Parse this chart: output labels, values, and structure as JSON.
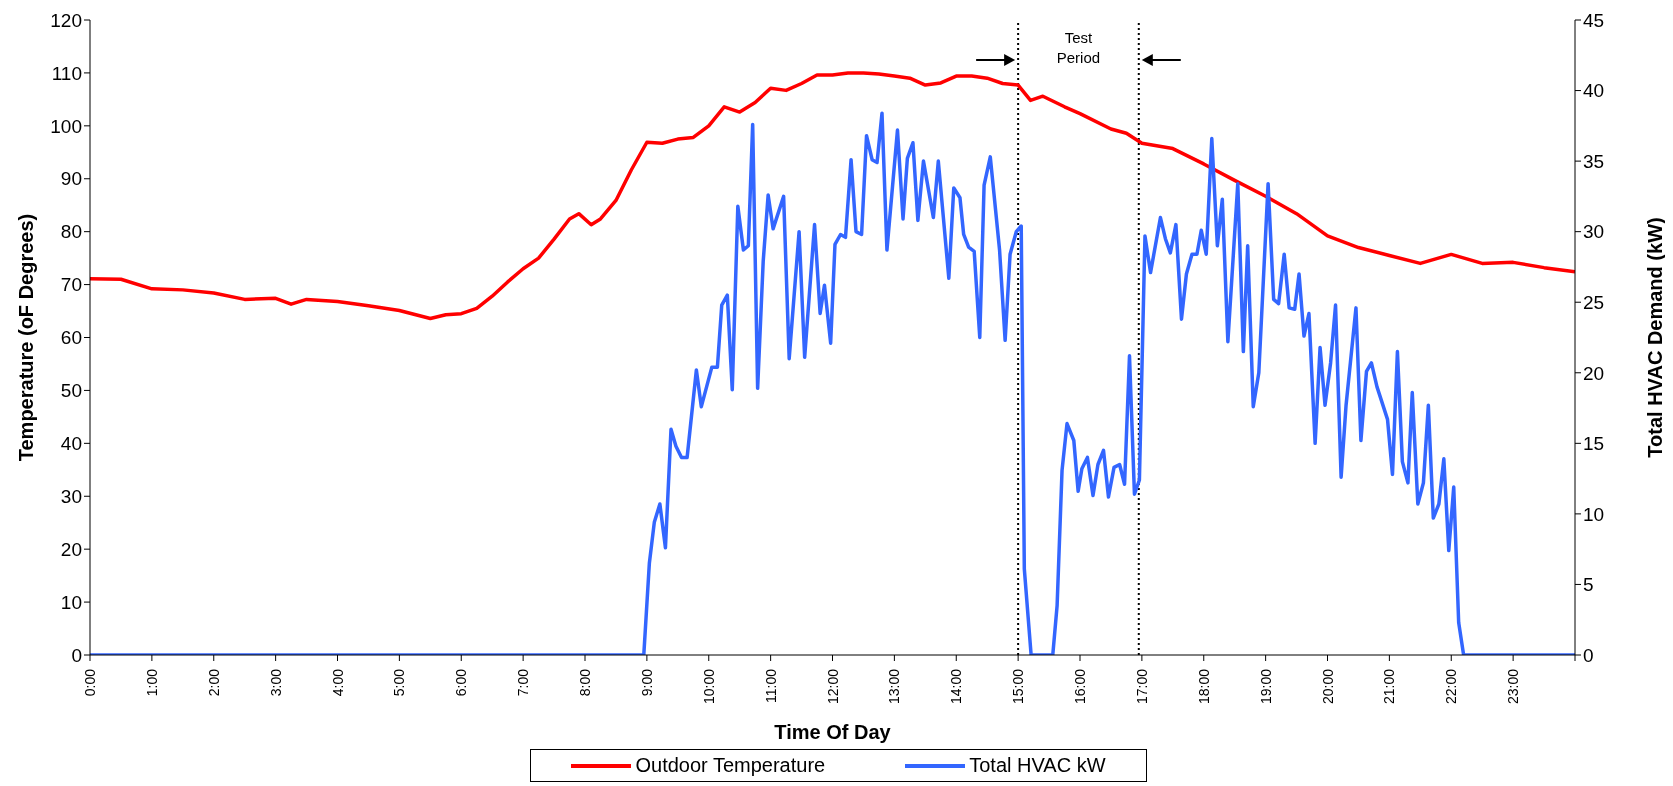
{
  "chart_data": {
    "type": "line",
    "xlabel": "Time Of Day",
    "ylabel": "Temperature (oF Degrees)",
    "y2label": "Total HVAC Demand (kW)",
    "xlim": [
      0,
      24
    ],
    "xticks": [
      {
        "value": 0,
        "label": "0:00"
      },
      {
        "value": 1,
        "label": "1:00"
      },
      {
        "value": 2,
        "label": "2:00"
      },
      {
        "value": 3,
        "label": "3:00"
      },
      {
        "value": 4,
        "label": "4:00"
      },
      {
        "value": 5,
        "label": "5:00"
      },
      {
        "value": 6,
        "label": "6:00"
      },
      {
        "value": 7,
        "label": "7:00"
      },
      {
        "value": 8,
        "label": "8:00"
      },
      {
        "value": 9,
        "label": "9:00"
      },
      {
        "value": 10,
        "label": "10:00"
      },
      {
        "value": 11,
        "label": "11:00"
      },
      {
        "value": 12,
        "label": "12:00"
      },
      {
        "value": 13,
        "label": "13:00"
      },
      {
        "value": 14,
        "label": "14:00"
      },
      {
        "value": 15,
        "label": "15:00"
      },
      {
        "value": 16,
        "label": "16:00"
      },
      {
        "value": 17,
        "label": "17:00"
      },
      {
        "value": 18,
        "label": "18:00"
      },
      {
        "value": 19,
        "label": "19:00"
      },
      {
        "value": 20,
        "label": "20:00"
      },
      {
        "value": 21,
        "label": "21:00"
      },
      {
        "value": 22,
        "label": "22:00"
      },
      {
        "value": 23,
        "label": "23:00"
      },
      {
        "value": 24,
        "label": null
      }
    ],
    "ylim": [
      0,
      120
    ],
    "yticks": [
      0,
      10,
      20,
      30,
      40,
      50,
      60,
      70,
      80,
      90,
      100,
      110,
      120
    ],
    "y2lim": [
      0,
      45
    ],
    "y2ticks": [
      0,
      5,
      10,
      15,
      20,
      25,
      30,
      35,
      40,
      45
    ],
    "grid": false,
    "legend": "bottom",
    "marker": "none",
    "line_style": "solid",
    "ref_lines": [
      {
        "axis": "x",
        "value": 15,
        "color": "#000000",
        "line_style": "dotted"
      },
      {
        "axis": "x",
        "value": 16.95,
        "color": "#000000",
        "line_style": "dotted"
      }
    ],
    "annotations": [
      "Test Period"
    ],
    "series": [
      {
        "name": "Outdoor Temperature",
        "color": "#ff0000",
        "x": [
          0,
          0.5,
          1,
          1.5,
          2,
          2.5,
          3,
          3.25,
          3.5,
          4,
          4.5,
          5,
          5.5,
          5.75,
          6,
          6.25,
          6.5,
          6.75,
          7,
          7.25,
          7.5,
          7.75,
          7.9,
          8.1,
          8.25,
          8.5,
          8.75,
          9,
          9.25,
          9.5,
          9.75,
          10,
          10.25,
          10.5,
          10.75,
          11,
          11.25,
          11.5,
          11.75,
          12,
          12.25,
          12.5,
          12.75,
          13,
          13.25,
          13.5,
          13.75,
          14,
          14.25,
          14.5,
          14.75,
          15,
          15.2,
          15.4,
          15.75,
          16,
          16.5,
          16.75,
          17,
          17.5,
          18,
          18.5,
          19,
          19.5,
          20,
          20.5,
          21,
          21.5,
          22,
          22.5,
          23,
          23.5,
          24
        ],
        "values": [
          71.1,
          71,
          69.2,
          69,
          68.4,
          67.2,
          67.4,
          66.3,
          67.2,
          66.8,
          66,
          65.1,
          63.6,
          64.3,
          64.5,
          65.5,
          67.8,
          70.5,
          73,
          75,
          78.6,
          82.4,
          83.4,
          81.3,
          82.4,
          85.9,
          91.7,
          96.9,
          96.7,
          97.5,
          97.8,
          100,
          103.6,
          102.6,
          104.4,
          107.1,
          106.7,
          108,
          109.6,
          109.6,
          110,
          110,
          109.8,
          109.4,
          109,
          107.7,
          108.1,
          109.4,
          109.4,
          109,
          108,
          107.7,
          104.8,
          105.6,
          103.6,
          102.3,
          99.4,
          98.6,
          96.7,
          95.7,
          92.8,
          89.7,
          86.7,
          83.4,
          79.2,
          77,
          75.5,
          74,
          75.7,
          74,
          74.2,
          73.2,
          72.4
        ]
      },
      {
        "name": "Total HVAC kW",
        "color": "#3366ff",
        "axis": "y2",
        "x": [
          0,
          8.95,
          9.04,
          9.12,
          9.21,
          9.3,
          9.39,
          9.47,
          9.56,
          9.65,
          9.8,
          9.88,
          10.05,
          10.14,
          10.21,
          10.3,
          10.38,
          10.47,
          10.56,
          10.64,
          10.71,
          10.79,
          10.88,
          10.96,
          11.04,
          11.21,
          11.3,
          11.46,
          11.55,
          11.71,
          11.8,
          11.87,
          11.97,
          12.04,
          12.13,
          12.21,
          12.3,
          12.38,
          12.47,
          12.55,
          12.64,
          12.72,
          12.8,
          12.88,
          13.05,
          13.14,
          13.21,
          13.3,
          13.38,
          13.47,
          13.63,
          13.71,
          13.88,
          13.96,
          14.06,
          14.12,
          14.2,
          14.29,
          14.38,
          14.45,
          14.55,
          14.7,
          14.79,
          14.87,
          14.97,
          15.05,
          15.1,
          15.21,
          15.56,
          15.63,
          15.71,
          15.79,
          15.9,
          15.97,
          16.03,
          16.12,
          16.21,
          16.29,
          16.38,
          16.46,
          16.55,
          16.64,
          16.72,
          16.8,
          16.88,
          16.96,
          17.05,
          17.14,
          17.3,
          17.38,
          17.46,
          17.55,
          17.64,
          17.72,
          17.81,
          17.89,
          17.96,
          18.04,
          18.13,
          18.22,
          18.3,
          18.39,
          18.55,
          18.64,
          18.71,
          18.8,
          18.89,
          19.04,
          19.13,
          19.21,
          19.3,
          19.38,
          19.47,
          19.54,
          19.62,
          19.7,
          19.8,
          19.88,
          19.96,
          20.05,
          20.13,
          20.22,
          20.3,
          20.46,
          20.54,
          20.63,
          20.71,
          20.8,
          20.97,
          21.05,
          21.13,
          21.21,
          21.3,
          21.37,
          21.46,
          21.55,
          21.63,
          21.71,
          21.8,
          21.88,
          21.96,
          22.04,
          22.12,
          22.2,
          24
        ],
        "values": [
          0,
          0,
          6.5,
          9.4,
          10.7,
          7.6,
          16,
          14.8,
          14,
          14,
          20.2,
          17.6,
          20.4,
          20.4,
          24.8,
          25.5,
          18.8,
          31.8,
          28.7,
          29,
          37.6,
          18.9,
          27.9,
          32.6,
          30.2,
          32.5,
          21,
          30,
          21.1,
          30.5,
          24.2,
          26.2,
          22.1,
          29.1,
          29.8,
          29.6,
          35.1,
          30,
          29.8,
          36.8,
          35.1,
          34.9,
          38.4,
          28.7,
          37.2,
          30.9,
          35.2,
          36.3,
          30.8,
          35,
          31,
          35,
          26.7,
          33.1,
          32.4,
          29.8,
          28.9,
          28.6,
          22.5,
          33.3,
          35.3,
          28.7,
          22.3,
          28.4,
          30,
          30.4,
          6.1,
          0,
          0,
          3.5,
          13.1,
          16.4,
          15.2,
          11.6,
          13.2,
          14,
          11.3,
          13.5,
          14.5,
          11.2,
          13.3,
          13.5,
          12.1,
          21.2,
          11.4,
          12.4,
          29.7,
          27.1,
          31,
          29.5,
          28.5,
          30.5,
          23.8,
          27,
          28.4,
          28.4,
          30.1,
          28.4,
          36.6,
          29,
          32.3,
          22.2,
          33.4,
          21.5,
          29,
          17.6,
          20,
          33.4,
          25.2,
          24.9,
          28.4,
          24.6,
          24.5,
          27,
          22.6,
          24.2,
          15,
          21.8,
          17.7,
          20.7,
          24.8,
          12.6,
          17.7,
          24.6,
          15.2,
          20.1,
          20.7,
          19,
          16.7,
          12.8,
          21.5,
          13.7,
          12.2,
          18.6,
          10.7,
          12.2,
          17.7,
          9.7,
          10.7,
          13.9,
          7.4,
          11.9,
          2.3,
          0,
          0
        ]
      }
    ]
  }
}
